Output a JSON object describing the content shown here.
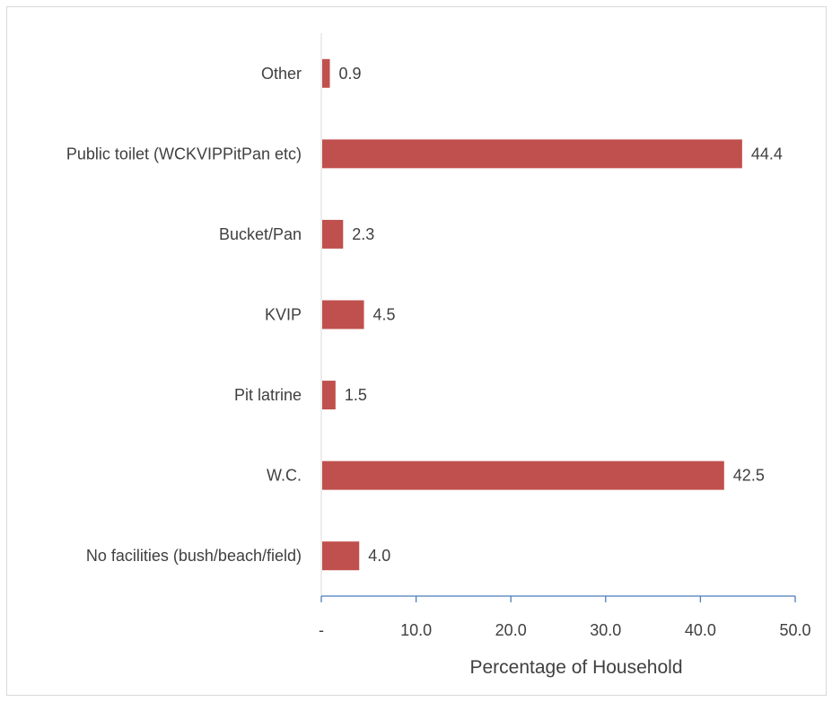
{
  "chart_data": {
    "type": "bar",
    "orientation": "horizontal",
    "categories": [
      "Other",
      "Public toilet (WCKVIPPitPan etc)",
      "Bucket/Pan",
      "KVIP",
      "Pit latrine",
      "W.C.",
      "No facilities (bush/beach/field)"
    ],
    "series": [
      {
        "values": [
          0.9,
          44.4,
          2.3,
          4.5,
          1.5,
          42.5,
          4.0
        ]
      }
    ],
    "value_labels": [
      "0.9",
      "44.4",
      "2.3",
      "4.5",
      "1.5",
      "42.5",
      "4.0"
    ],
    "xlabel": "Percentage of Household",
    "ylabel": "",
    "xlim": [
      0,
      50
    ],
    "xticks": [
      0,
      10,
      20,
      30,
      40,
      50
    ],
    "xtick_labels": [
      "-",
      "10.0",
      "20.0",
      "30.0",
      "40.0",
      "50.0"
    ],
    "grid": false,
    "colors": {
      "bar": "#c0504d",
      "axis": "#4a7ebb",
      "text": "#404040",
      "border": "#d9d9d9"
    }
  }
}
